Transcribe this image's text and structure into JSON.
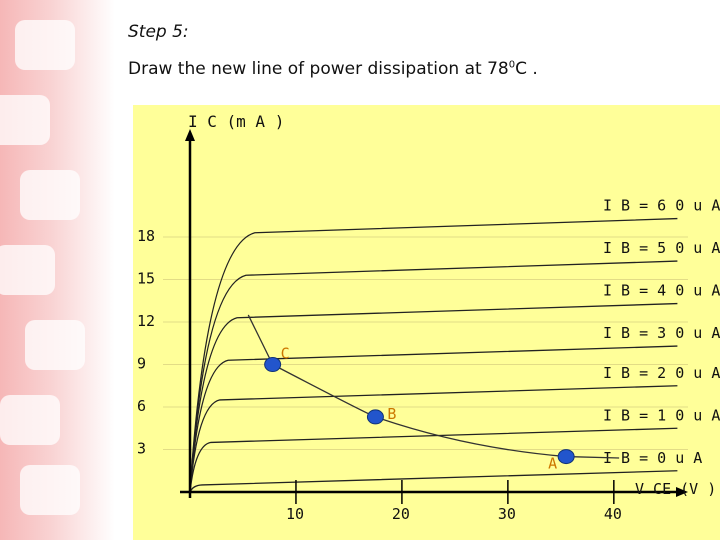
{
  "slide": {
    "step_title": "Step 5:",
    "instruction_prefix": "Draw the new line of power dissipation at 78",
    "instruction_sup": "0",
    "instruction_suffix": "C ."
  },
  "colors": {
    "chart_background": "#ffff99",
    "sidebar_tint": "#f6b7b7",
    "point_fill": "#2255cc",
    "point_label": "#cc7700"
  },
  "chart_data": {
    "type": "line",
    "y_axis_label": "I C (m A )",
    "x_axis_label": "V CE (V )",
    "x_ticks": [
      "10",
      "20",
      "30",
      "40"
    ],
    "x_tick_values": [
      10,
      20,
      30,
      40
    ],
    "y_ticks": [
      "3",
      "6",
      "9",
      "12",
      "15",
      "18"
    ],
    "y_tick_values": [
      3,
      6,
      9,
      12,
      15,
      18
    ],
    "xlim": [
      0,
      47
    ],
    "ylim": [
      0,
      24
    ],
    "curves": [
      {
        "label": "I B = 6 0  u A",
        "y_end": 19.3
      },
      {
        "label": "I B = 5 0  u A",
        "y_end": 16.3
      },
      {
        "label": "I B = 4 0  u A",
        "y_end": 13.3
      },
      {
        "label": "I B = 3 0  u A",
        "y_end": 10.3
      },
      {
        "label": "I B = 2 0  u A",
        "y_end": 7.5
      },
      {
        "label": "I B = 1 0  u A",
        "y_end": 4.5
      },
      {
        "label": "I B = 0  u A",
        "y_end": 1.5
      }
    ],
    "power_curve_label": "78°C power dissipation",
    "points": [
      {
        "label": "C",
        "x": 7.8,
        "y": 9
      },
      {
        "label": "B",
        "x": 17.5,
        "y": 5.3
      },
      {
        "label": "A",
        "x": 35.5,
        "y": 2.5
      }
    ]
  }
}
